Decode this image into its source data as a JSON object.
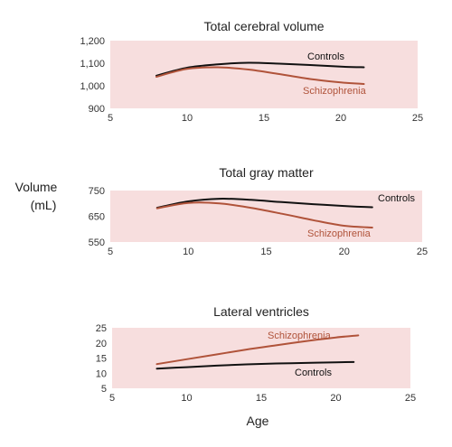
{
  "figure": {
    "ylabel_line1": "Volume",
    "ylabel_line2": "(mL)",
    "xlabel": "Age"
  },
  "colors": {
    "panel_bg": "#f7dede",
    "controls": "#111111",
    "schizophrenia": "#b0533a"
  },
  "chart_data": [
    {
      "type": "line",
      "title": "Total cerebral volume",
      "xlim": [
        5,
        25
      ],
      "ylim": [
        900,
        1200
      ],
      "xticks": [
        5,
        10,
        15,
        20,
        25
      ],
      "yticks": [
        900,
        1000,
        1100,
        1200
      ],
      "ytick_labels": [
        "900",
        "1,000",
        "1,100",
        "1,200"
      ],
      "series": [
        {
          "name": "Controls",
          "x": [
            8,
            10,
            12,
            14,
            16,
            18,
            20,
            21.5
          ],
          "y": [
            1045,
            1080,
            1095,
            1102,
            1098,
            1092,
            1085,
            1082
          ]
        },
        {
          "name": "Schizophrenia",
          "x": [
            8,
            10,
            12,
            14,
            16,
            18,
            20,
            21.5
          ],
          "y": [
            1040,
            1075,
            1082,
            1072,
            1052,
            1030,
            1015,
            1008
          ]
        }
      ]
    },
    {
      "type": "line",
      "title": "Total gray matter",
      "xlim": [
        5,
        25
      ],
      "ylim": [
        550,
        750
      ],
      "xticks": [
        5,
        10,
        15,
        20,
        25
      ],
      "yticks": [
        550,
        650,
        750
      ],
      "ytick_labels": [
        "550",
        "650",
        "750"
      ],
      "series": [
        {
          "name": "Controls",
          "x": [
            8,
            10,
            12,
            14,
            16,
            18,
            20,
            21.8
          ],
          "y": [
            683,
            708,
            718,
            714,
            705,
            697,
            690,
            685
          ]
        },
        {
          "name": "Schizophrenia",
          "x": [
            8,
            10,
            12,
            14,
            16,
            18,
            20,
            21.8
          ],
          "y": [
            681,
            702,
            700,
            683,
            660,
            635,
            613,
            606
          ]
        }
      ]
    },
    {
      "type": "line",
      "title": "Lateral ventricles",
      "xlim": [
        5,
        25
      ],
      "ylim": [
        5,
        25
      ],
      "xticks": [
        5,
        10,
        15,
        20,
        25
      ],
      "yticks": [
        5,
        10,
        15,
        20,
        25
      ],
      "ytick_labels": [
        "5",
        "10",
        "15",
        "20",
        "25"
      ],
      "series": [
        {
          "name": "Controls",
          "x": [
            8,
            10,
            12,
            14,
            16,
            18,
            20,
            21.2
          ],
          "y": [
            11.5,
            12.0,
            12.5,
            12.9,
            13.2,
            13.4,
            13.6,
            13.7
          ]
        },
        {
          "name": "Schizophrenia",
          "x": [
            8,
            10,
            12,
            14,
            16,
            18,
            20,
            21.5
          ],
          "y": [
            13.0,
            14.6,
            16.2,
            17.8,
            19.2,
            20.6,
            21.8,
            22.5
          ]
        }
      ]
    }
  ]
}
